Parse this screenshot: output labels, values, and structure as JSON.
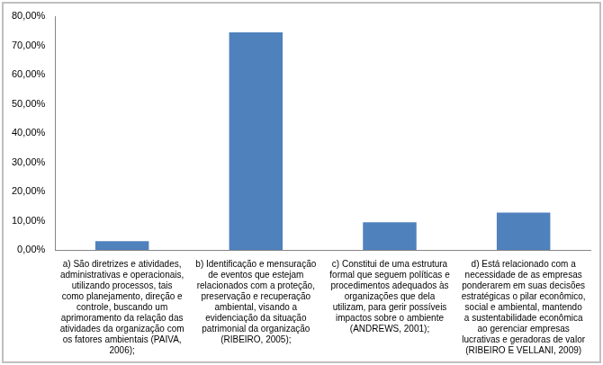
{
  "chart_data": {
    "type": "bar",
    "categories": [
      "a) São diretrizes e atividades, administrativas e operacionais, utilizando processos, tais como planejamento, direção e controle, buscando um aprimoramento da relação das atividades da organização com os fatores ambientais (PAIVA, 2006);",
      "b) Identificação e mensuração de eventos que estejam relacionados com a proteção, preservação e recuperação ambiental, visando a evidenciação da situação patrimonial da organização (RIBEIRO, 2005);",
      "c) Constitui de uma estrutura formal que seguem políticas e procedimentos adequados às organizações que dela utilizam, para gerir possíveis impactos sobre o ambiente (ANDREWS, 2001);",
      "d) Está relacionado com a necessidade de as empresas ponderarem em suas decisões estratégicas o pilar econômico, social e ambiental, mantendo a sustentabilidade econômica ao gerenciar empresas lucrativas e geradoras de valor (RIBEIRO E VELLANI, 2009)"
    ],
    "values": [
      3,
      74.5,
      9.5,
      12.8
    ],
    "color": "#4f81bd",
    "ylim": [
      0,
      80
    ],
    "yticks": [
      {
        "value": 0,
        "label": "0,00%"
      },
      {
        "value": 10,
        "label": "10,00%"
      },
      {
        "value": 20,
        "label": "20,00%"
      },
      {
        "value": 30,
        "label": "30,00%"
      },
      {
        "value": 40,
        "label": "40,00%"
      },
      {
        "value": 50,
        "label": "50,00%"
      },
      {
        "value": 60,
        "label": "60,00%"
      },
      {
        "value": 70,
        "label": "70,00%"
      },
      {
        "value": 80,
        "label": "80,00%"
      }
    ],
    "grid": false
  }
}
